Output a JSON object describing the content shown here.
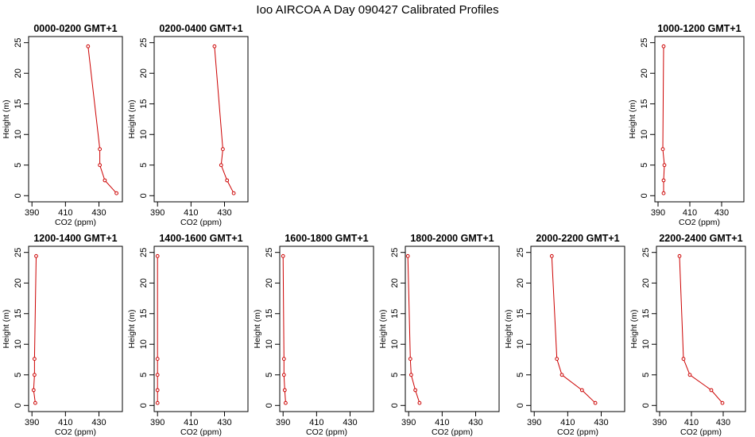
{
  "figure": {
    "title": "Ioo AIRCOA A  Day 090427  Calibrated Profiles",
    "line_color": "#cc0000",
    "frame_color": "#000000"
  },
  "chart_data": [
    {
      "type": "line",
      "title": "0000-0200 GMT+1",
      "xlabel": "CO2 (ppm)",
      "ylabel": "Height (m)",
      "xlim": [
        388,
        444
      ],
      "ylim": [
        -1,
        26
      ],
      "xticks": [
        390,
        410,
        430
      ],
      "yticks": [
        0,
        5,
        10,
        15,
        20,
        25
      ],
      "series": [
        {
          "x": [
            423.5,
            430.5,
            430.5,
            433.5,
            440.5
          ],
          "y": [
            24.4,
            7.6,
            5.0,
            2.5,
            0.4
          ]
        }
      ]
    },
    {
      "type": "line",
      "title": "0200-0400 GMT+1",
      "xlabel": "CO2 (ppm)",
      "ylabel": "Height (m)",
      "xlim": [
        388,
        444
      ],
      "ylim": [
        -1,
        26
      ],
      "xticks": [
        390,
        410,
        430
      ],
      "yticks": [
        0,
        5,
        10,
        15,
        20,
        25
      ],
      "series": [
        {
          "x": [
            424.0,
            429.0,
            428.0,
            431.5,
            435.5
          ],
          "y": [
            24.4,
            7.6,
            5.0,
            2.5,
            0.4
          ]
        }
      ]
    },
    {
      "type": "line",
      "title": "1000-1200 GMT+1",
      "xlabel": "CO2 (ppm)",
      "ylabel": "Height (m)",
      "xlim": [
        388,
        444
      ],
      "ylim": [
        -1,
        26
      ],
      "xticks": [
        390,
        410,
        430
      ],
      "yticks": [
        0,
        5,
        10,
        15,
        20,
        25
      ],
      "series": [
        {
          "x": [
            393.5,
            393.0,
            394.0,
            393.5,
            393.5
          ],
          "y": [
            24.4,
            7.6,
            5.0,
            2.5,
            0.4
          ]
        }
      ]
    },
    {
      "type": "line",
      "title": "1200-1400 GMT+1",
      "xlabel": "CO2 (ppm)",
      "ylabel": "Height (m)",
      "xlim": [
        388,
        444
      ],
      "ylim": [
        -1,
        26
      ],
      "xticks": [
        390,
        410,
        430
      ],
      "yticks": [
        0,
        5,
        10,
        15,
        20,
        25
      ],
      "series": [
        {
          "x": [
            392.5,
            391.5,
            391.5,
            391.0,
            392.0
          ],
          "y": [
            24.4,
            7.6,
            5.0,
            2.5,
            0.4
          ]
        }
      ]
    },
    {
      "type": "line",
      "title": "1400-1600 GMT+1",
      "xlabel": "CO2 (ppm)",
      "ylabel": "Height (m)",
      "xlim": [
        388,
        444
      ],
      "ylim": [
        -1,
        26
      ],
      "xticks": [
        390,
        410,
        430
      ],
      "yticks": [
        0,
        5,
        10,
        15,
        20,
        25
      ],
      "series": [
        {
          "x": [
            390.0,
            390.0,
            390.0,
            390.0,
            390.0
          ],
          "y": [
            24.4,
            7.6,
            5.0,
            2.5,
            0.4
          ]
        }
      ]
    },
    {
      "type": "line",
      "title": "1600-1800 GMT+1",
      "xlabel": "CO2 (ppm)",
      "ylabel": "Height (m)",
      "xlim": [
        388,
        444
      ],
      "ylim": [
        -1,
        26
      ],
      "xticks": [
        390,
        410,
        430
      ],
      "yticks": [
        0,
        5,
        10,
        15,
        20,
        25
      ],
      "series": [
        {
          "x": [
            390.0,
            390.5,
            390.5,
            391.0,
            391.5
          ],
          "y": [
            24.4,
            7.6,
            5.0,
            2.5,
            0.4
          ]
        }
      ]
    },
    {
      "type": "line",
      "title": "1800-2000 GMT+1",
      "xlabel": "CO2 (ppm)",
      "ylabel": "Height (m)",
      "xlim": [
        388,
        444
      ],
      "ylim": [
        -1,
        26
      ],
      "xticks": [
        390,
        410,
        430
      ],
      "yticks": [
        0,
        5,
        10,
        15,
        20,
        25
      ],
      "series": [
        {
          "x": [
            389.5,
            391.0,
            391.5,
            394.0,
            396.5
          ],
          "y": [
            24.4,
            7.6,
            5.0,
            2.5,
            0.4
          ]
        }
      ]
    },
    {
      "type": "line",
      "title": "2000-2200 GMT+1",
      "xlabel": "CO2 (ppm)",
      "ylabel": "Height (m)",
      "xlim": [
        388,
        444
      ],
      "ylim": [
        -1,
        26
      ],
      "xticks": [
        390,
        410,
        430
      ],
      "yticks": [
        0,
        5,
        10,
        15,
        20,
        25
      ],
      "series": [
        {
          "x": [
            400.5,
            403.5,
            406.5,
            418.5,
            426.5
          ],
          "y": [
            24.4,
            7.6,
            5.0,
            2.5,
            0.4
          ]
        }
      ]
    },
    {
      "type": "line",
      "title": "2200-2400 GMT+1",
      "xlabel": "CO2 (ppm)",
      "ylabel": "Height (m)",
      "xlim": [
        388,
        444
      ],
      "ylim": [
        -1,
        26
      ],
      "xticks": [
        390,
        410,
        430
      ],
      "yticks": [
        0,
        5,
        10,
        15,
        20,
        25
      ],
      "series": [
        {
          "x": [
            402.5,
            405.0,
            409.0,
            422.5,
            429.5
          ],
          "y": [
            24.4,
            7.6,
            5.0,
            2.5,
            0.4
          ]
        }
      ]
    }
  ]
}
